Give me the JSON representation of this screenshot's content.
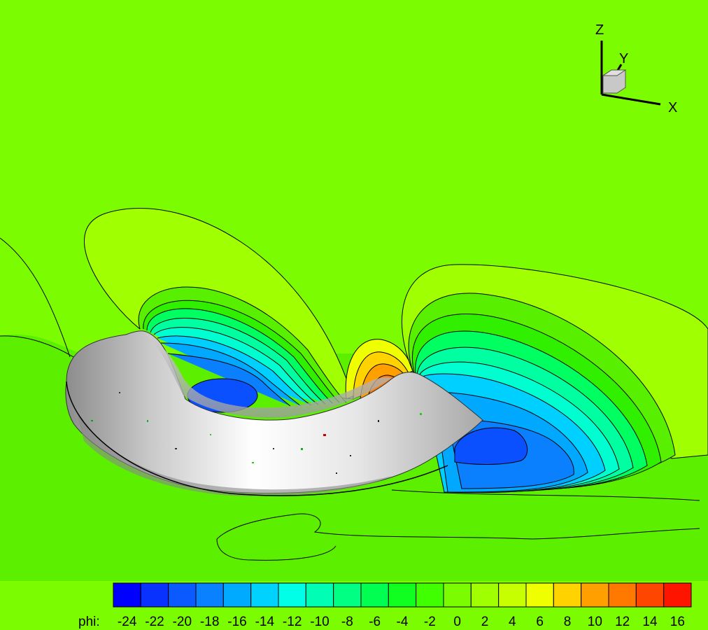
{
  "axes_triad": {
    "z": "Z",
    "y": "Y",
    "x": "X"
  },
  "legend": {
    "title": "phi:",
    "levels": [
      -24,
      -22,
      -20,
      -18,
      -16,
      -14,
      -12,
      -10,
      -8,
      -6,
      -4,
      -2,
      0,
      2,
      4,
      6,
      8,
      10,
      12,
      14,
      16
    ],
    "tick_labels": [
      "-24",
      "-22",
      "-20",
      "-18",
      "-16",
      "-14",
      "-12",
      "-10",
      "-8",
      "-6",
      "-4",
      "-2",
      "0",
      "2",
      "4",
      "6",
      "8",
      "10",
      "12",
      "14",
      "16"
    ],
    "colors": [
      "#0000ff",
      "#0a32ff",
      "#0a5aff",
      "#0a82ff",
      "#00aaff",
      "#00d2ff",
      "#00ffe6",
      "#00ffb4",
      "#00ff82",
      "#00ff50",
      "#10ff20",
      "#40ff00",
      "#7cfc00",
      "#a0ff00",
      "#c8ff00",
      "#f0ff00",
      "#ffd200",
      "#ffa000",
      "#ff7800",
      "#ff4600",
      "#ff1400"
    ]
  },
  "colors": {
    "background": "#7cfc00",
    "surface_light": "#f4f4f4",
    "surface_dark": "#9a9a9a",
    "contour_line": "#000000"
  }
}
